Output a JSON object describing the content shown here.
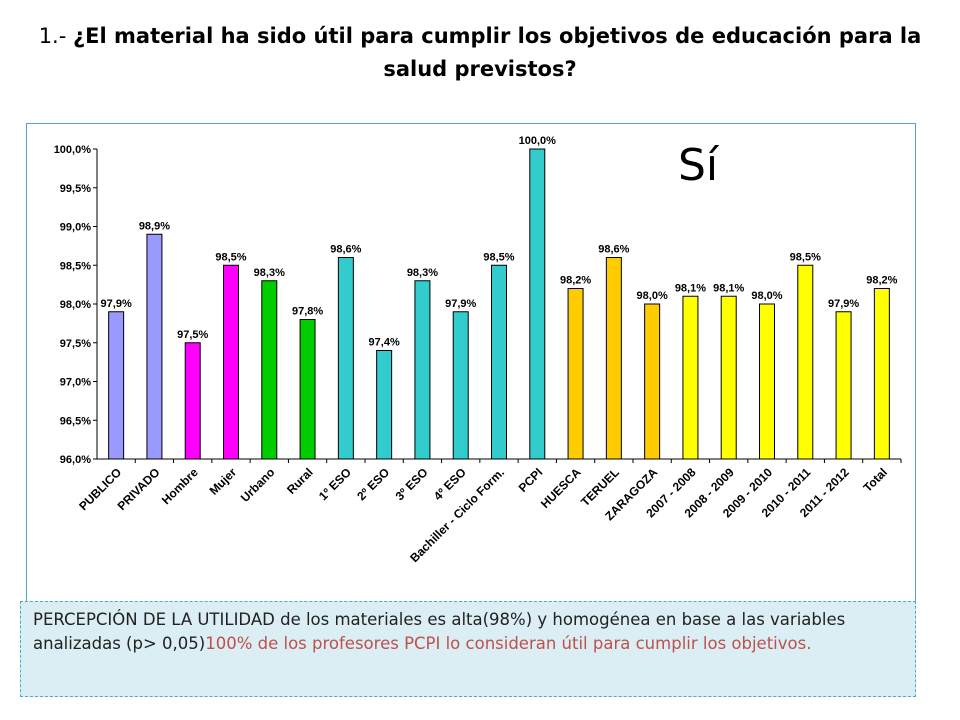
{
  "header": {
    "number": "1.-",
    "question": "¿El material ha sido útil para cumplir los objetivos de educación para la salud previstos?"
  },
  "answer_label": "Sí",
  "note": {
    "text_main": "PERCEPCIÓN DE LA UTILIDAD de los materiales es alta(98%) y homogénea en base a las variables analizadas (p> 0,05)",
    "text_highlight": "100% de los profesores PCPI lo consideran útil para cumplir los objetivos."
  },
  "chart_data": {
    "type": "bar",
    "ylim": [
      96.0,
      100.0
    ],
    "y_ticks": [
      "96,0%",
      "96,5%",
      "97,0%",
      "97,5%",
      "98,0%",
      "98,5%",
      "99,0%",
      "99,5%",
      "100,0%"
    ],
    "grid": false,
    "categories": [
      "PUBLICO",
      "PRIVADO",
      "Hombre",
      "Mujer",
      "Urbano",
      "Rural",
      "1º ESO",
      "2º ESO",
      "3º ESO",
      "4º ESO",
      "Bachiller - Ciclo Form.",
      "PCPI",
      "HUESCA",
      "TERUEL",
      "ZARAGOZA",
      "2007 - 2008",
      "2008 - 2009",
      "2009 - 2010",
      "2010 - 2011",
      "2011 - 2012",
      "Total"
    ],
    "values": [
      97.9,
      98.9,
      97.5,
      98.5,
      98.3,
      97.8,
      98.6,
      97.4,
      98.3,
      97.9,
      98.5,
      100.0,
      98.2,
      98.6,
      98.0,
      98.1,
      98.1,
      98.0,
      98.5,
      97.9,
      98.2
    ],
    "data_labels": [
      "97,9%",
      "98,9%",
      "97,5%",
      "98,5%",
      "98,3%",
      "97,8%",
      "98,6%",
      "97,4%",
      "98,3%",
      "97,9%",
      "98,5%",
      "100,0%",
      "98,2%",
      "98,6%",
      "98,0%",
      "98,1%",
      "98,1%",
      "98,0%",
      "98,5%",
      "97,9%",
      "98,2%"
    ],
    "colors": [
      "#9999ff",
      "#9999ff",
      "#ff00ff",
      "#ff00ff",
      "#00cc00",
      "#00cc00",
      "#33cccc",
      "#33cccc",
      "#33cccc",
      "#33cccc",
      "#33cccc",
      "#33cccc",
      "#ffcc00",
      "#ffcc00",
      "#ffcc00",
      "#ffff00",
      "#ffff00",
      "#ffff00",
      "#ffff00",
      "#ffff00",
      "#ffff00"
    ]
  }
}
